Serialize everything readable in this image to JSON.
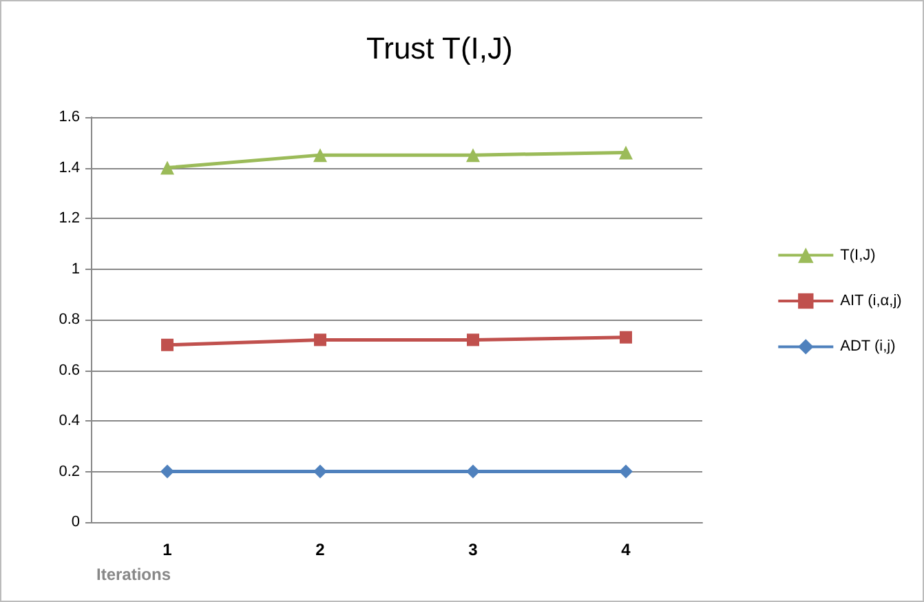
{
  "chart_data": {
    "type": "line",
    "title": "Trust T(I,J)",
    "xlabel": "Iterations",
    "categories": [
      "1",
      "2",
      "3",
      "4"
    ],
    "series": [
      {
        "name": "T(I,J)",
        "color": "#9bbb59",
        "marker": "triangle",
        "values": [
          1.4,
          1.45,
          1.45,
          1.46
        ]
      },
      {
        "name": "AIT (i,α,j)",
        "color": "#c0504d",
        "marker": "square",
        "values": [
          0.7,
          0.72,
          0.72,
          0.73
        ]
      },
      {
        "name": "ADT (i,j)",
        "color": "#4f81bd",
        "marker": "diamond",
        "values": [
          0.2,
          0.2,
          0.2,
          0.2
        ]
      }
    ],
    "ylim": [
      0,
      1.6
    ],
    "yticks": [
      0,
      0.2,
      0.4,
      0.6,
      0.8,
      1,
      1.2,
      1.4,
      1.6
    ],
    "grid": "y",
    "legend": "right"
  }
}
